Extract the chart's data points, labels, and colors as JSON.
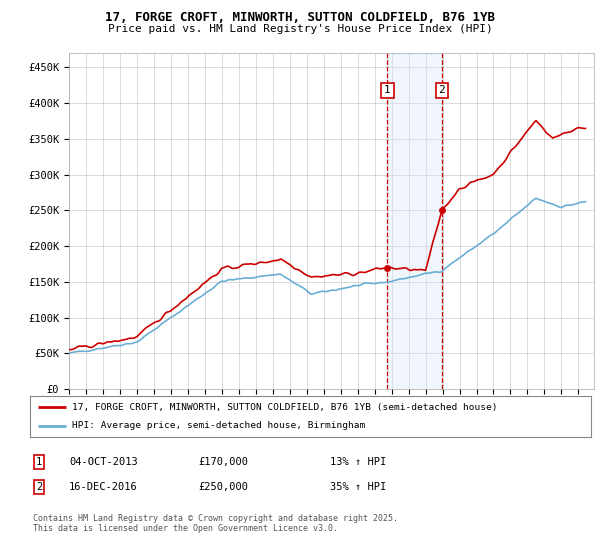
{
  "title_line1": "17, FORGE CROFT, MINWORTH, SUTTON COLDFIELD, B76 1YB",
  "title_line2": "Price paid vs. HM Land Registry's House Price Index (HPI)",
  "ylabel_ticks": [
    "£0",
    "£50K",
    "£100K",
    "£150K",
    "£200K",
    "£250K",
    "£300K",
    "£350K",
    "£400K",
    "£450K"
  ],
  "ylabel_values": [
    0,
    50000,
    100000,
    150000,
    200000,
    250000,
    300000,
    350000,
    400000,
    450000
  ],
  "ylim": [
    0,
    470000
  ],
  "xlim_start": 1995.0,
  "xlim_end": 2025.92,
  "hpi_color": "#6baed6",
  "price_color": "#cc0000",
  "marker1_date": 2013.75,
  "marker1_price": 170000,
  "marker2_date": 2016.96,
  "marker2_price": 250000,
  "shade_color": "#d6e8f5",
  "dashed_color": "#cc0000",
  "legend_line1": "17, FORGE CROFT, MINWORTH, SUTTON COLDFIELD, B76 1YB (semi-detached house)",
  "legend_line2": "HPI: Average price, semi-detached house, Birmingham",
  "note1_num": "1",
  "note1_date": "04-OCT-2013",
  "note1_price": "£170,000",
  "note1_hpi": "13% ↑ HPI",
  "note2_num": "2",
  "note2_date": "16-DEC-2016",
  "note2_price": "£250,000",
  "note2_hpi": "35% ↑ HPI",
  "copyright": "Contains HM Land Registry data © Crown copyright and database right 2025.\nThis data is licensed under the Open Government Licence v3.0."
}
